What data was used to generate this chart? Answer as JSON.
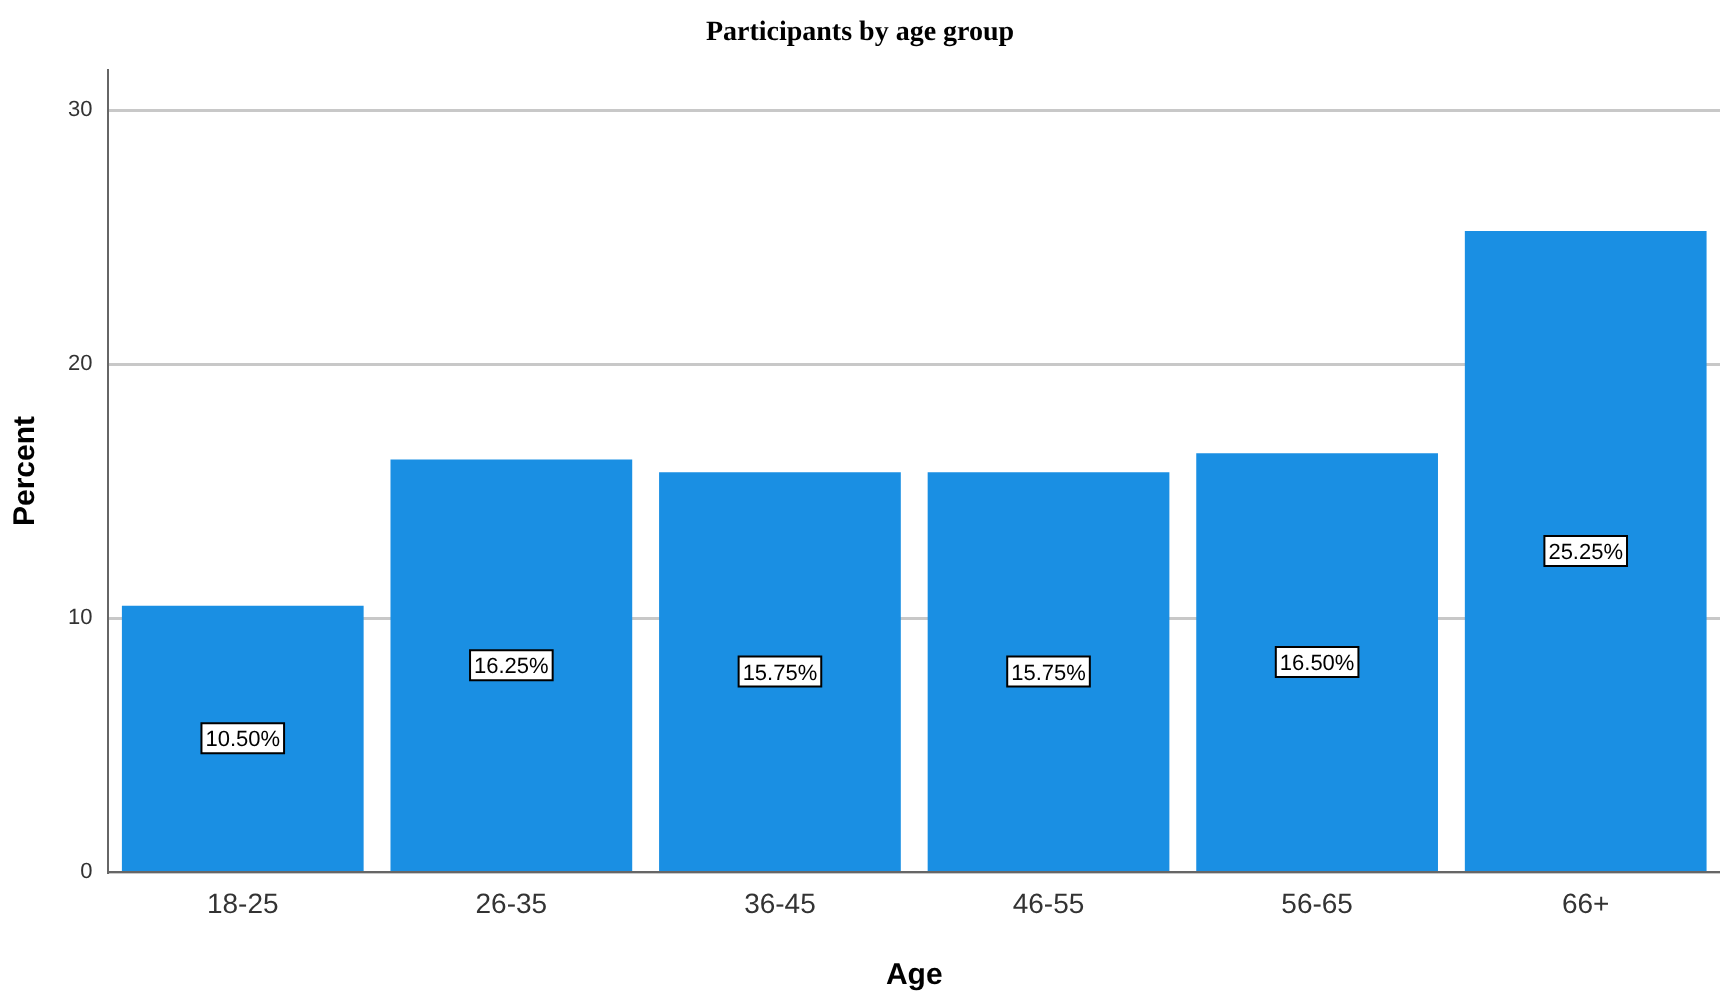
{
  "chart_data": {
    "type": "bar",
    "title": "Participants by age group",
    "xlabel": "Age",
    "ylabel": "Percent",
    "categories": [
      "18-25",
      "26-35",
      "36-45",
      "46-55",
      "56-65",
      "66+"
    ],
    "values": [
      10.5,
      16.25,
      15.75,
      15.75,
      16.5,
      25.25
    ],
    "value_labels": [
      "10.50%",
      "16.25%",
      "15.75%",
      "15.75%",
      "16.50%",
      "25.25%"
    ],
    "color": "#1a8fe3",
    "ylim": [
      0,
      31.6
    ],
    "yticks": [
      0,
      10,
      20,
      30
    ],
    "grid": "y",
    "legend": false
  }
}
